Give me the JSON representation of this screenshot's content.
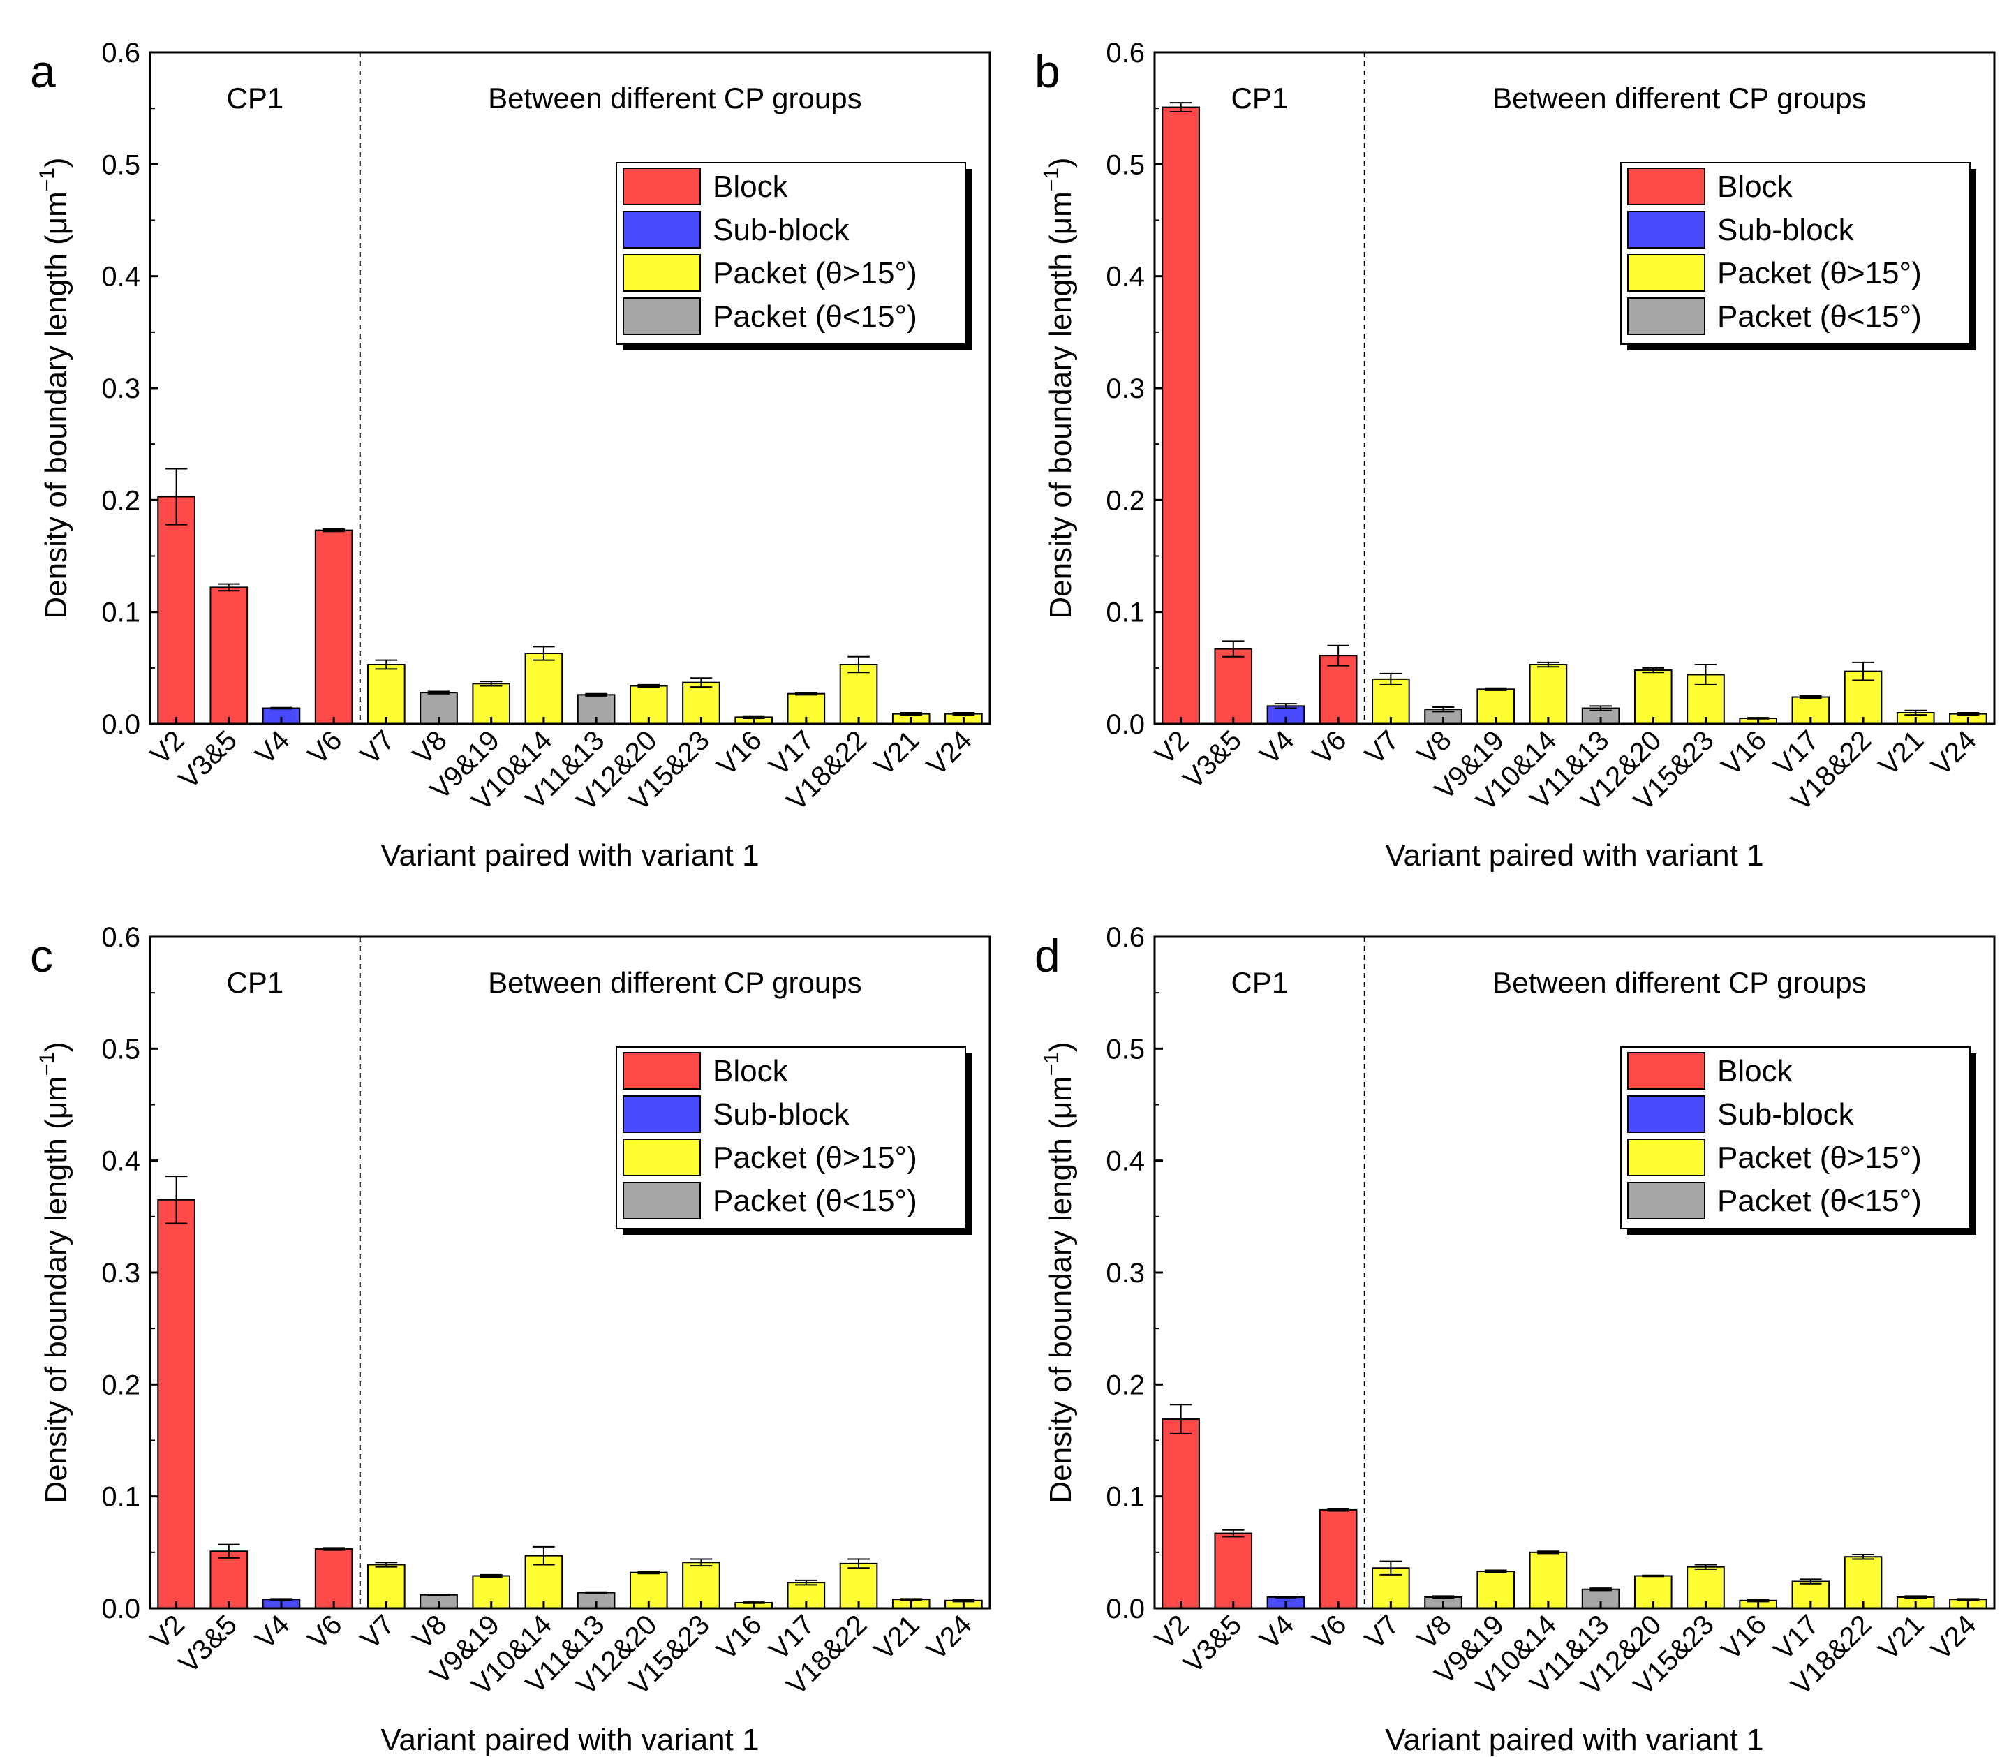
{
  "figure": {
    "x_axis_label": "Variant paired with variant 1",
    "y_axis_label_text": "Density of boundary length (μm",
    "y_axis_label_unit_sup": "−1",
    "y_axis_label_close": ")",
    "cp1_label": "CP1",
    "between_label": "Between different CP groups",
    "legend": [
      {
        "key": "block",
        "label": "Block",
        "color": "#ff4a4a"
      },
      {
        "key": "subblock",
        "label": "Sub-block",
        "color": "#4a4aff"
      },
      {
        "key": "packet_hi",
        "label": "Packet (θ>15°)",
        "color": "#ffff33"
      },
      {
        "key": "packet_lo",
        "label": "Packet (θ<15°)",
        "color": "#a6a6a6"
      }
    ],
    "y_ticks": [
      "0.0",
      "0.1",
      "0.2",
      "0.3",
      "0.4",
      "0.5",
      "0.6"
    ]
  },
  "chart_data": [
    {
      "type": "bar",
      "panel": "a",
      "title": "",
      "categories": [
        "V2",
        "V3&5",
        "V4",
        "V6",
        "V7",
        "V8",
        "V9&19",
        "V10&14",
        "V11&13",
        "V12&20",
        "V15&23",
        "V16",
        "V17",
        "V18&22",
        "V21",
        "V24"
      ],
      "groups": [
        "block",
        "block",
        "subblock",
        "block",
        "packet_hi",
        "packet_lo",
        "packet_hi",
        "packet_hi",
        "packet_lo",
        "packet_hi",
        "packet_hi",
        "packet_hi",
        "packet_hi",
        "packet_hi",
        "packet_hi",
        "packet_hi"
      ],
      "values": [
        0.203,
        0.122,
        0.014,
        0.173,
        0.053,
        0.028,
        0.036,
        0.063,
        0.026,
        0.034,
        0.037,
        0.006,
        0.027,
        0.053,
        0.009,
        0.009
      ],
      "errors": [
        0.025,
        0.003,
        0.0005,
        0.001,
        0.004,
        0.001,
        0.002,
        0.006,
        0.001,
        0.001,
        0.004,
        0.001,
        0.001,
        0.007,
        0.001,
        0.001
      ],
      "xlabel": "Variant paired with variant 1",
      "ylabel": "Density of boundary length (μm−1)",
      "ylim": [
        0,
        0.6
      ]
    },
    {
      "type": "bar",
      "panel": "b",
      "title": "",
      "categories": [
        "V2",
        "V3&5",
        "V4",
        "V6",
        "V7",
        "V8",
        "V9&19",
        "V10&14",
        "V11&13",
        "V12&20",
        "V15&23",
        "V16",
        "V17",
        "V18&22",
        "V21",
        "V24"
      ],
      "groups": [
        "block",
        "block",
        "subblock",
        "block",
        "packet_hi",
        "packet_lo",
        "packet_hi",
        "packet_hi",
        "packet_lo",
        "packet_hi",
        "packet_hi",
        "packet_hi",
        "packet_hi",
        "packet_hi",
        "packet_hi",
        "packet_hi"
      ],
      "values": [
        0.551,
        0.067,
        0.016,
        0.061,
        0.04,
        0.013,
        0.031,
        0.053,
        0.014,
        0.048,
        0.044,
        0.005,
        0.024,
        0.047,
        0.01,
        0.009
      ],
      "errors": [
        0.004,
        0.007,
        0.002,
        0.009,
        0.005,
        0.002,
        0.001,
        0.002,
        0.002,
        0.002,
        0.009,
        0.0005,
        0.001,
        0.008,
        0.002,
        0.001
      ],
      "xlabel": "Variant paired with variant 1",
      "ylabel": "Density of boundary length (μm−1)",
      "ylim": [
        0,
        0.6
      ]
    },
    {
      "type": "bar",
      "panel": "c",
      "title": "",
      "categories": [
        "V2",
        "V3&5",
        "V4",
        "V6",
        "V7",
        "V8",
        "V9&19",
        "V10&14",
        "V11&13",
        "V12&20",
        "V15&23",
        "V16",
        "V17",
        "V18&22",
        "V21",
        "V24"
      ],
      "groups": [
        "block",
        "block",
        "subblock",
        "block",
        "packet_hi",
        "packet_lo",
        "packet_hi",
        "packet_hi",
        "packet_lo",
        "packet_hi",
        "packet_hi",
        "packet_hi",
        "packet_hi",
        "packet_hi",
        "packet_hi",
        "packet_hi"
      ],
      "values": [
        0.365,
        0.051,
        0.008,
        0.053,
        0.039,
        0.012,
        0.029,
        0.047,
        0.014,
        0.032,
        0.041,
        0.005,
        0.023,
        0.04,
        0.008,
        0.007
      ],
      "errors": [
        0.021,
        0.006,
        0.0005,
        0.001,
        0.002,
        0.0005,
        0.001,
        0.008,
        0.0005,
        0.001,
        0.003,
        0.0005,
        0.002,
        0.004,
        0.0005,
        0.001
      ],
      "xlabel": "Variant paired with variant 1",
      "ylabel": "Density of boundary length (μm−1)",
      "ylim": [
        0,
        0.6
      ]
    },
    {
      "type": "bar",
      "panel": "d",
      "title": "",
      "categories": [
        "V2",
        "V3&5",
        "V4",
        "V6",
        "V7",
        "V8",
        "V9&19",
        "V10&14",
        "V11&13",
        "V12&20",
        "V15&23",
        "V16",
        "V17",
        "V18&22",
        "V21",
        "V24"
      ],
      "groups": [
        "block",
        "block",
        "subblock",
        "block",
        "packet_hi",
        "packet_lo",
        "packet_hi",
        "packet_hi",
        "packet_lo",
        "packet_hi",
        "packet_hi",
        "packet_hi",
        "packet_hi",
        "packet_hi",
        "packet_hi",
        "packet_hi"
      ],
      "values": [
        0.169,
        0.067,
        0.01,
        0.088,
        0.036,
        0.01,
        0.033,
        0.05,
        0.017,
        0.029,
        0.037,
        0.007,
        0.024,
        0.046,
        0.01,
        0.008
      ],
      "errors": [
        0.013,
        0.003,
        0.0005,
        0.001,
        0.006,
        0.001,
        0.001,
        0.001,
        0.001,
        0.0005,
        0.002,
        0.001,
        0.002,
        0.002,
        0.001,
        0.0005
      ],
      "xlabel": "Variant paired with variant 1",
      "ylabel": "Density of boundary length (μm−1)",
      "ylim": [
        0,
        0.6
      ]
    }
  ]
}
